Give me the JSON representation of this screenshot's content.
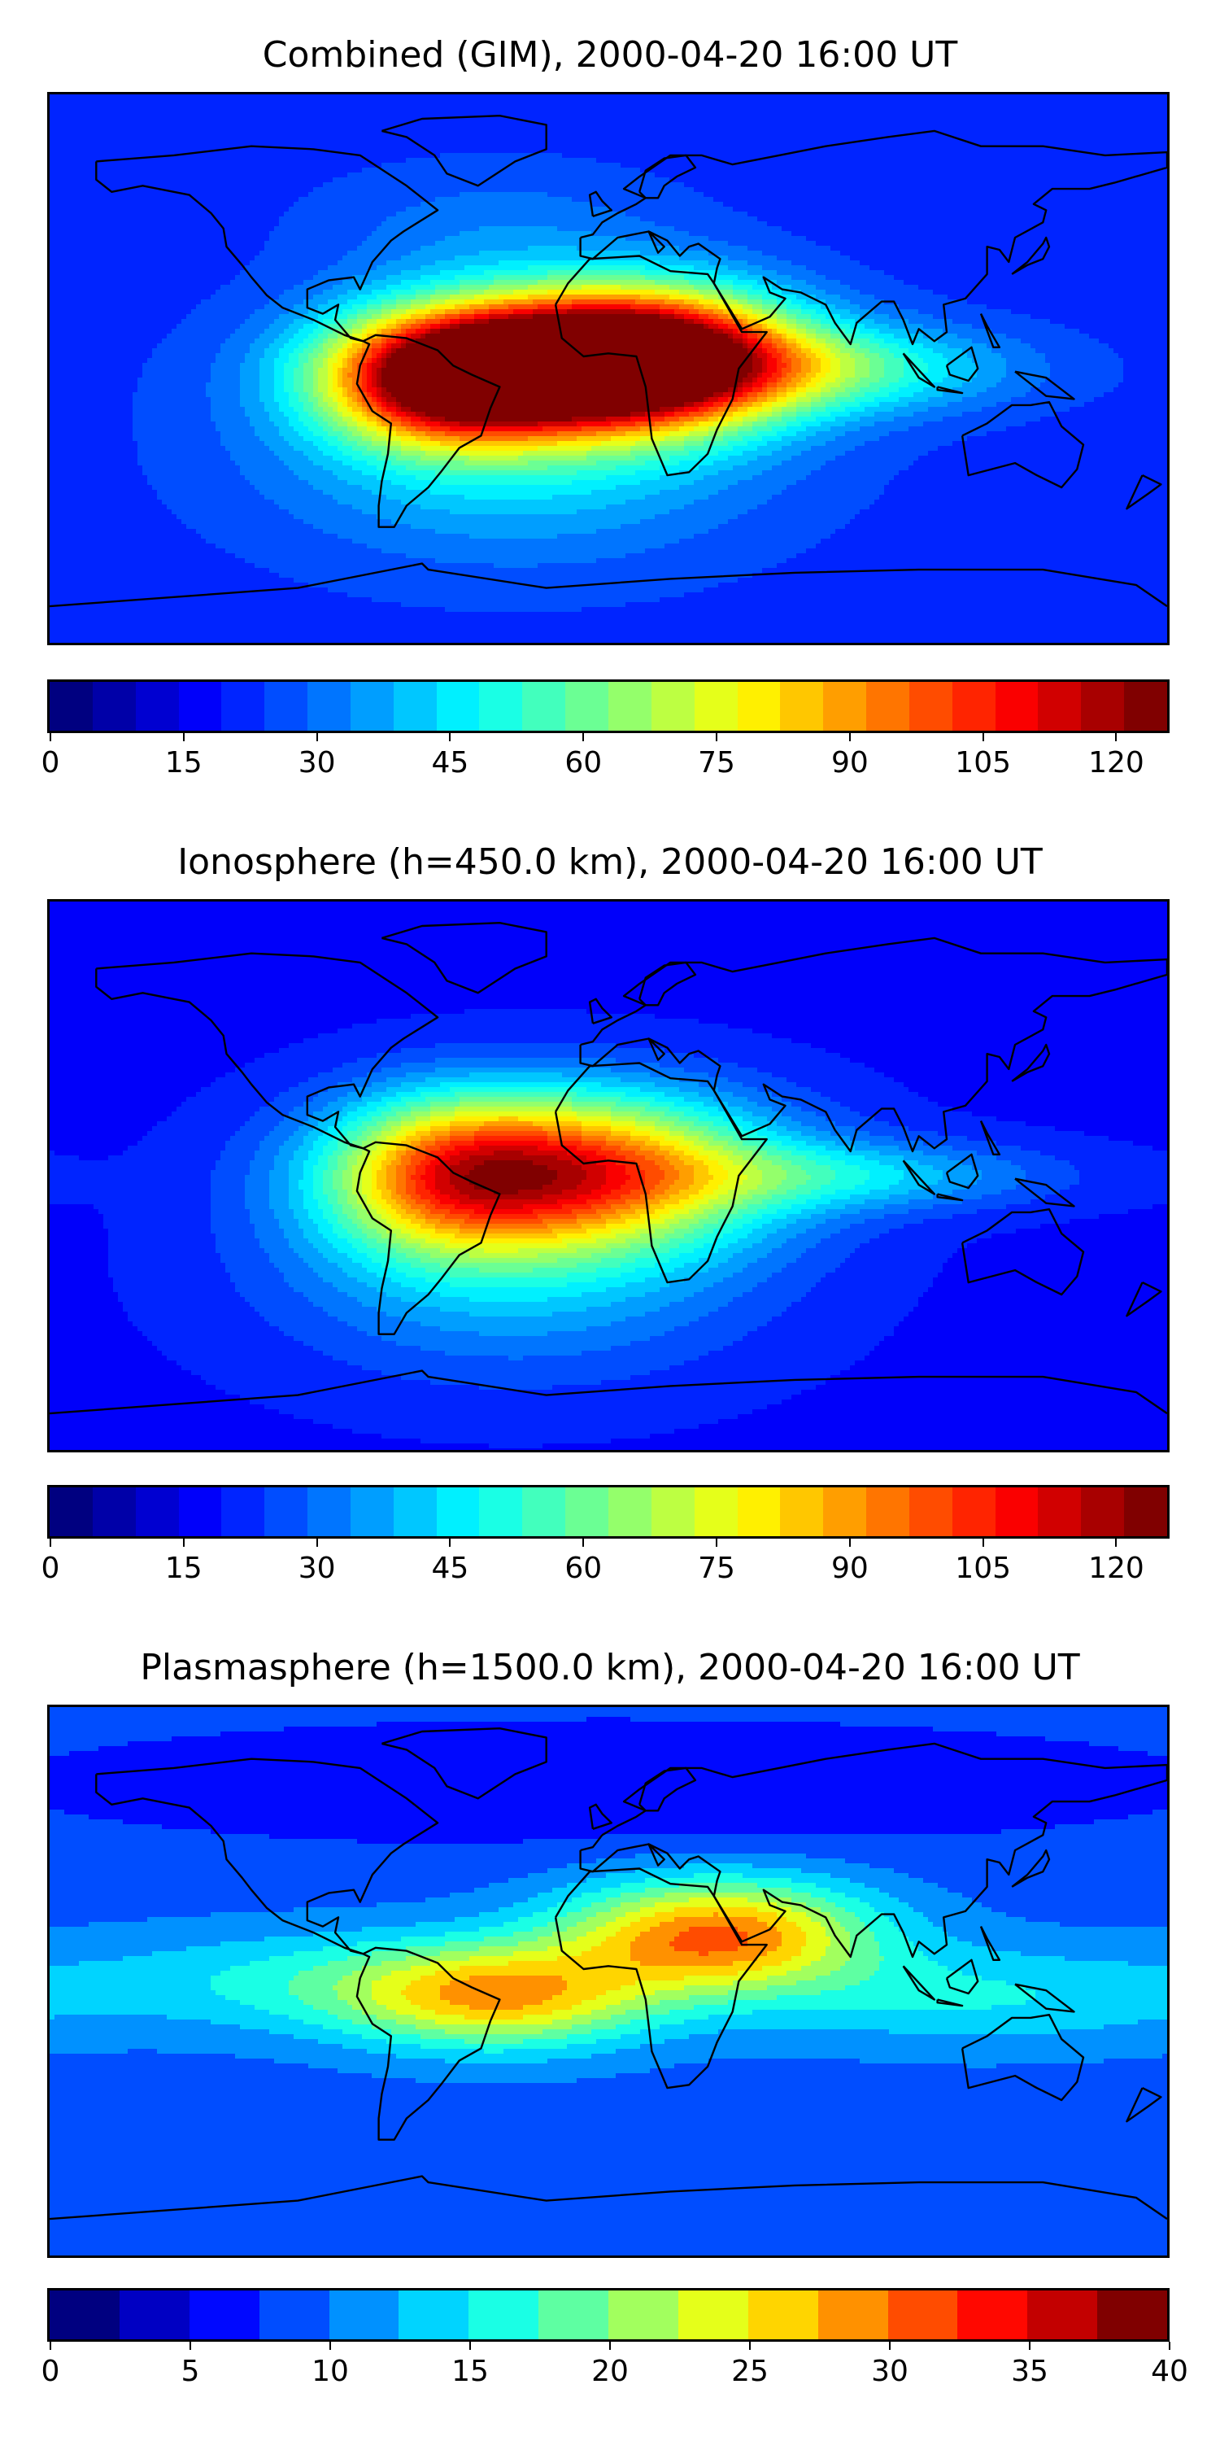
{
  "chart_data": [
    {
      "type": "heatmap",
      "title": "Combined (GIM), 2000-04-20 16:00 UT",
      "colormap": "jet",
      "vmin": 0,
      "vmax": 126,
      "levels": 26,
      "colorbar_ticks": [
        "0",
        "15",
        "30",
        "45",
        "60",
        "75",
        "90",
        "105",
        "120"
      ],
      "colorbar_tick_values": [
        0,
        15,
        30,
        45,
        60,
        75,
        90,
        105,
        120
      ],
      "grid": false,
      "background_value": 22,
      "peaks": [
        {
          "lon": -15,
          "lat": 2,
          "value": 122,
          "lon_spread": 42,
          "lat_spread": 15
        },
        {
          "lon": -55,
          "lat": -5,
          "value": 55,
          "lon_spread": 25,
          "lat_spread": 14
        },
        {
          "lon": 20,
          "lat": 5,
          "value": 48,
          "lon_spread": 30,
          "lat_spread": 16
        },
        {
          "lon": 75,
          "lat": 0,
          "value": 28,
          "lon_spread": 40,
          "lat_spread": 10
        },
        {
          "lon": -30,
          "lat": -25,
          "value": 25,
          "lon_spread": 55,
          "lat_spread": 25
        },
        {
          "lon": -35,
          "lat": 45,
          "value": 10,
          "lon_spread": 40,
          "lat_spread": 15
        }
      ]
    },
    {
      "type": "heatmap",
      "title": "Ionosphere  (h=450.0 km), 2000-04-20 16:00 UT",
      "colormap": "jet",
      "vmin": 0,
      "vmax": 126,
      "levels": 26,
      "colorbar_ticks": [
        "0",
        "15",
        "30",
        "45",
        "60",
        "75",
        "90",
        "105",
        "120"
      ],
      "colorbar_tick_values": [
        0,
        15,
        30,
        45,
        60,
        75,
        90,
        105,
        120
      ],
      "grid": false,
      "background_value": 18,
      "peaks": [
        {
          "lon": -15,
          "lat": 2,
          "value": 82,
          "lon_spread": 45,
          "lat_spread": 18
        },
        {
          "lon": -55,
          "lat": 0,
          "value": 30,
          "lon_spread": 25,
          "lat_spread": 18
        },
        {
          "lon": 80,
          "lat": 0,
          "value": 22,
          "lon_spread": 45,
          "lat_spread": 8
        },
        {
          "lon": -30,
          "lat": -30,
          "value": 22,
          "lon_spread": 55,
          "lat_spread": 25
        }
      ]
    },
    {
      "type": "heatmap",
      "title": "Plasmasphere (h=1500.0 km), 2000-04-20 16:00 UT",
      "colormap": "jet",
      "vmin": 0,
      "vmax": 40,
      "levels": 16,
      "colorbar_ticks": [
        "0",
        "5",
        "10",
        "15",
        "20",
        "25",
        "30",
        "35",
        "40"
      ],
      "colorbar_tick_values": [
        0,
        5,
        10,
        15,
        20,
        25,
        30,
        35,
        40
      ],
      "grid": false,
      "background_value": 9,
      "peaks": [
        {
          "lon": 35,
          "lat": 15,
          "value": 21,
          "lon_spread": 35,
          "lat_spread": 13
        },
        {
          "lon": -35,
          "lat": -5,
          "value": 17,
          "lon_spread": 35,
          "lat_spread": 12
        },
        {
          "lon": -100,
          "lat": 0,
          "value": 6,
          "lon_spread": 50,
          "lat_spread": 12
        },
        {
          "lon": 120,
          "lat": -5,
          "value": 6,
          "lon_spread": 50,
          "lat_spread": 12
        },
        {
          "lon": 0,
          "lat": 65,
          "value": -4,
          "lon_spread": 140,
          "lat_spread": 15
        }
      ]
    }
  ]
}
